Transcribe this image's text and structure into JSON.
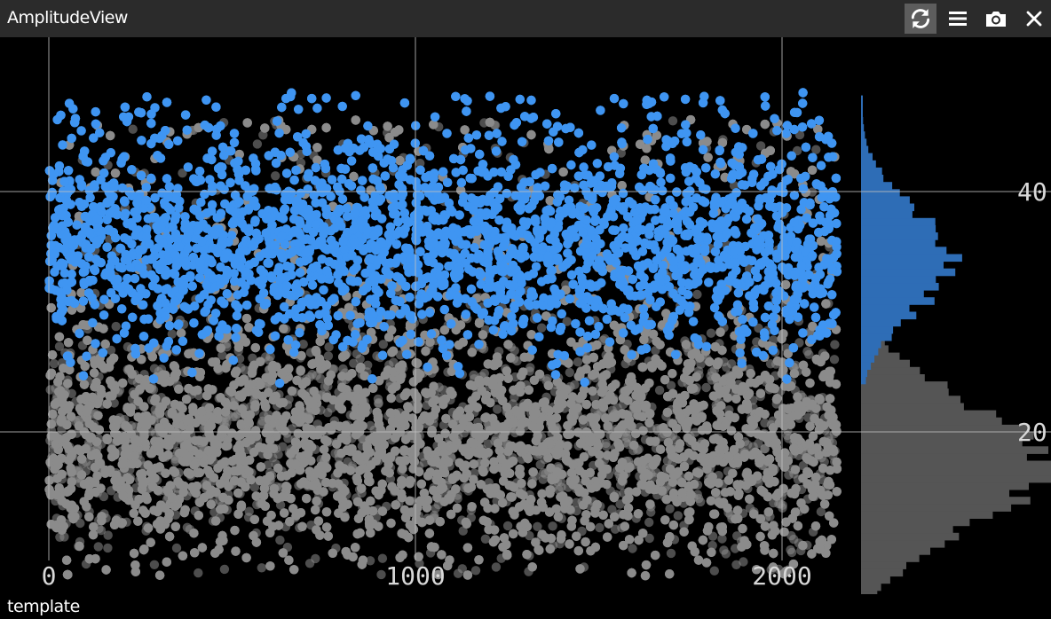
{
  "window": {
    "title": "AmplitudeView",
    "footer_label": "template"
  },
  "toolbar": [
    {
      "name": "refresh-button",
      "icon": "refresh-icon",
      "active": true
    },
    {
      "name": "menu-button",
      "icon": "hamburger-menu-icon",
      "active": false
    },
    {
      "name": "screenshot-button",
      "icon": "camera-icon",
      "active": false
    },
    {
      "name": "close-button",
      "icon": "close-icon",
      "active": false
    }
  ],
  "colors": {
    "titlebar": "#2b2b2b",
    "background": "#000000",
    "selected_points": "#3f95f2",
    "unselected_points": "#8c8c8c",
    "grid": "#bdbdbd",
    "hist_selected": "#2e6db6",
    "hist_unselected": "#555555"
  },
  "chart_data": {
    "type": "scatter",
    "title": "",
    "xlabel": "",
    "ylabel": "",
    "xlim": [
      0,
      2180
    ],
    "ylim": [
      0,
      48
    ],
    "x_ticks": [
      {
        "value": 0,
        "label": "0"
      },
      {
        "value": 1000,
        "label": "1000"
      },
      {
        "value": 2000,
        "label": "2000"
      }
    ],
    "y_ticks": [
      {
        "value": 20,
        "label": "20"
      },
      {
        "value": 40,
        "label": "40"
      }
    ],
    "grid": true,
    "point_count_estimate": {
      "selected": 6000,
      "unselected": 17000
    },
    "series": [
      {
        "name": "",
        "color": "#8c8c8c",
        "y_mean": 19,
        "y_spread": 5,
        "x_range": [
          0,
          2150
        ]
      },
      {
        "name": "",
        "color": "#3f95f2",
        "y_mean": 35,
        "y_spread": 4,
        "x_range": [
          0,
          2150
        ]
      }
    ],
    "marginal_histogram": {
      "orientation": "horizontal",
      "unselected_peak_y": 17,
      "selected_peak_y": 34
    }
  }
}
